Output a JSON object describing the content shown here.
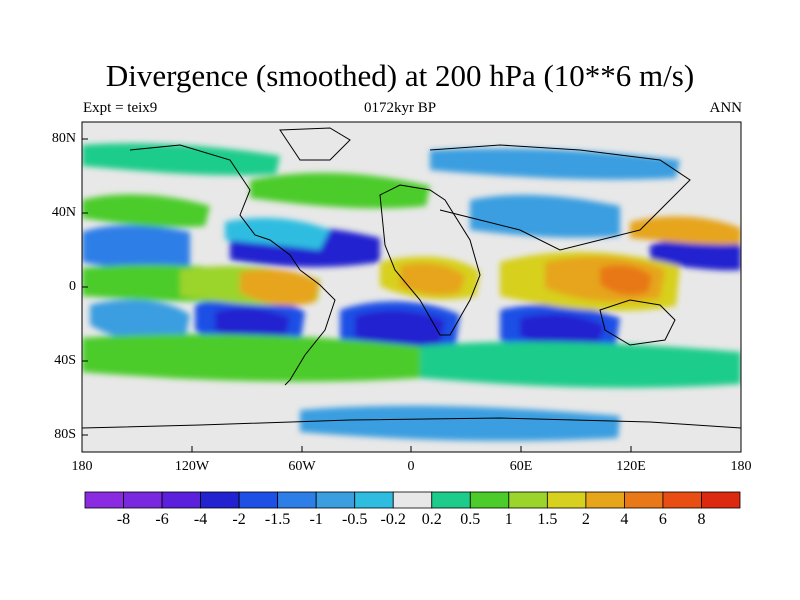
{
  "header": {
    "title": "Divergence (smoothed) at 200 hPa (10**6 m/s)",
    "left": "Expt = teix9",
    "center": "0172kyr BP",
    "right": "ANN"
  },
  "axes": {
    "y_labels": [
      "80N",
      "40N",
      "0",
      "40S",
      "80S"
    ],
    "x_labels": [
      "180",
      "120W",
      "60W",
      "0",
      "60E",
      "120E",
      "180"
    ]
  },
  "colorbar": {
    "colors": [
      "#8a2be2",
      "#7a28e0",
      "#5a20dc",
      "#2222d0",
      "#1e50e6",
      "#2e7ee8",
      "#3a9ee0",
      "#2ebde0",
      "#e8e8e8",
      "#1dcc8a",
      "#4ccc2a",
      "#9bd42a",
      "#d7d01e",
      "#e6a51a",
      "#e87818",
      "#e84e14",
      "#dc2a10"
    ],
    "labels": [
      "-8",
      "-6",
      "-4",
      "-2",
      "-1.5",
      "-1",
      "-0.5",
      "-0.2",
      "0.2",
      "0.5",
      "1",
      "1.5",
      "2",
      "4",
      "6",
      "8"
    ]
  },
  "fields": {
    "background": "#e8e8e8",
    "coastline": "#000000"
  }
}
